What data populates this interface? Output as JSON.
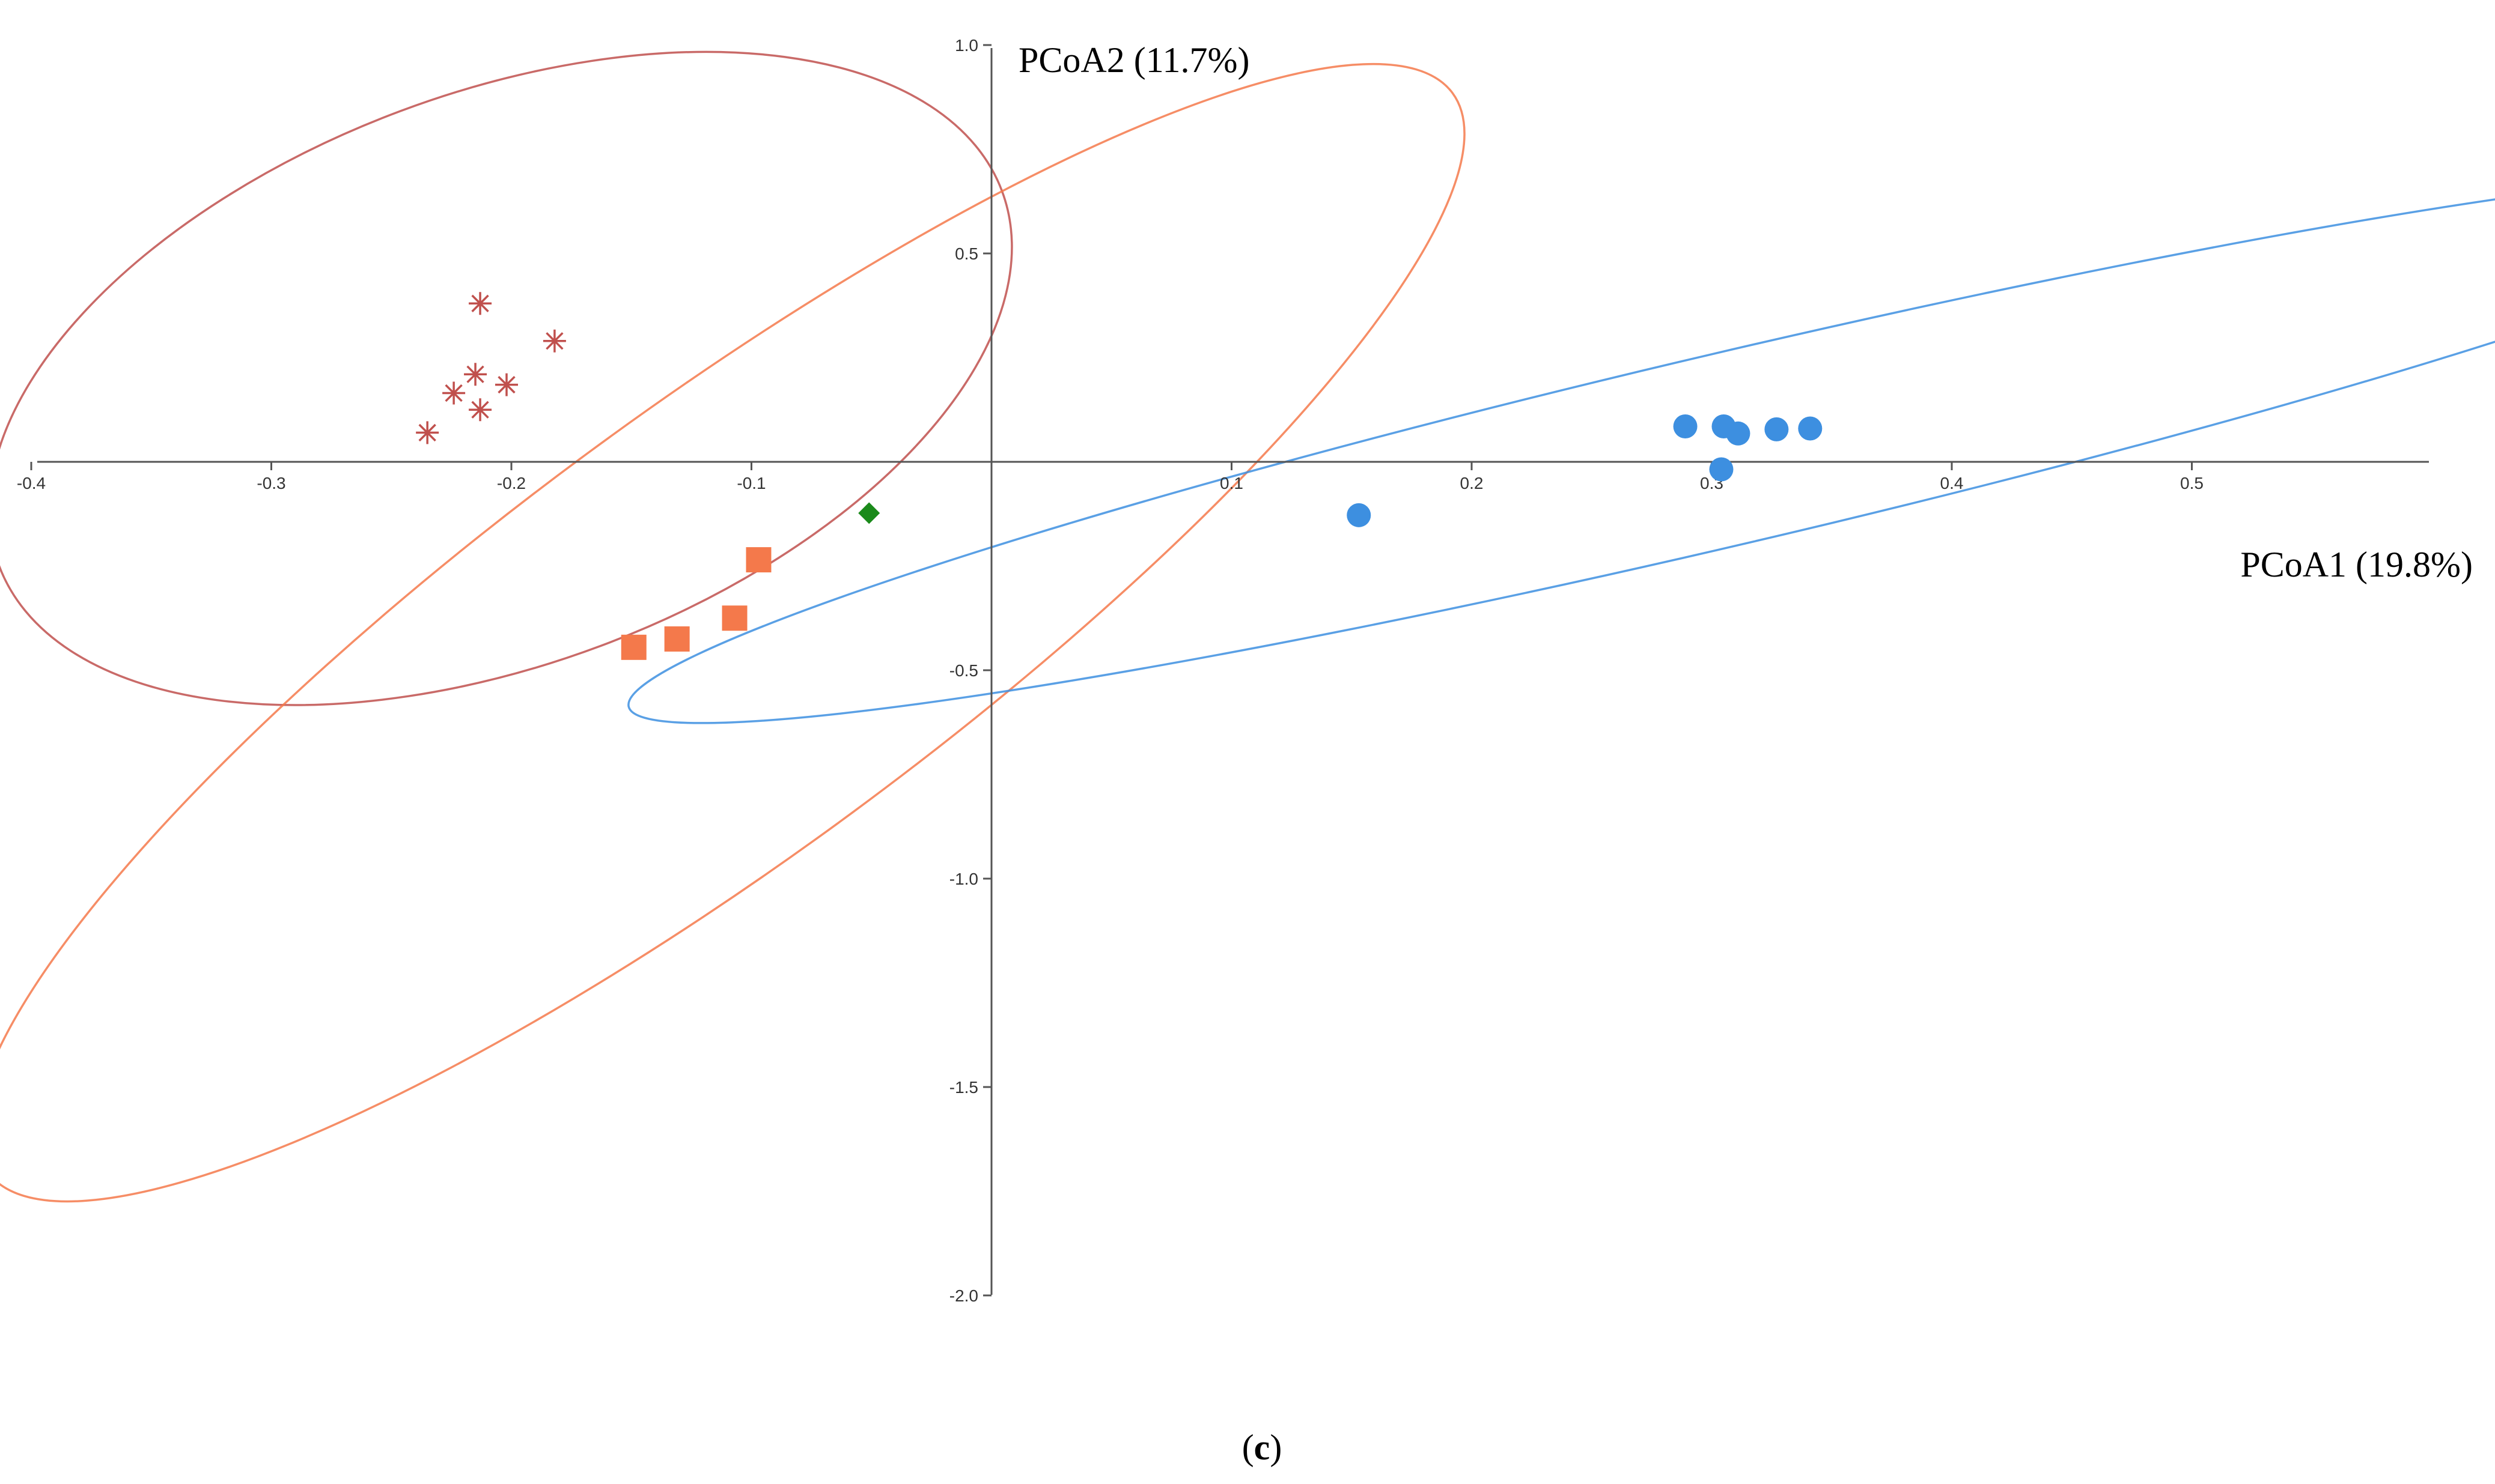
{
  "chart_data": {
    "type": "scatter",
    "title": "",
    "xlabel": "PCoA1 (19.8%)",
    "ylabel": "PCoA2 (11.7%)",
    "xlim": [
      -0.4,
      0.6
    ],
    "ylim": [
      -2.0,
      1.0
    ],
    "x_ticks": [
      {
        "value": -0.4,
        "label": "-0.4"
      },
      {
        "value": -0.3,
        "label": "-0.3"
      },
      {
        "value": -0.2,
        "label": "-0.2"
      },
      {
        "value": -0.1,
        "label": "-0.1"
      },
      {
        "value": 0.1,
        "label": "0.1"
      },
      {
        "value": 0.2,
        "label": "0.2"
      },
      {
        "value": 0.3,
        "label": "0.3"
      },
      {
        "value": 0.4,
        "label": "0.4"
      },
      {
        "value": 0.5,
        "label": "0.5"
      }
    ],
    "y_ticks": [
      {
        "value": 1.0,
        "label": "1.0"
      },
      {
        "value": 0.5,
        "label": "0.5"
      },
      {
        "value": -0.5,
        "label": "-0.5"
      },
      {
        "value": -1.0,
        "label": "-1.0"
      },
      {
        "value": -1.5,
        "label": "-1.5"
      },
      {
        "value": -2.0,
        "label": "-2.0"
      }
    ],
    "series": [
      {
        "name": "group-asterisk",
        "marker": "asterisk",
        "color": "#c0504d",
        "points": [
          {
            "x": -0.213,
            "y": 0.38
          },
          {
            "x": -0.182,
            "y": 0.29
          },
          {
            "x": -0.215,
            "y": 0.21
          },
          {
            "x": -0.202,
            "y": 0.185
          },
          {
            "x": -0.224,
            "y": 0.165
          },
          {
            "x": -0.213,
            "y": 0.125
          },
          {
            "x": -0.235,
            "y": 0.07
          }
        ],
        "ellipse": {
          "cx": -0.2045,
          "cy": 0.2,
          "rx": 0.119,
          "ry": 0.223,
          "angle_deg": 69.5
        }
      },
      {
        "name": "group-square",
        "marker": "square",
        "color": "#f4794b",
        "points": [
          {
            "x": -0.097,
            "y": -0.235
          },
          {
            "x": -0.107,
            "y": -0.375
          },
          {
            "x": -0.131,
            "y": -0.425
          },
          {
            "x": -0.149,
            "y": -0.445
          }
        ],
        "ellipse": {
          "cx": -0.113,
          "cy": -0.41,
          "rx": 0.379,
          "ry": 0.093,
          "angle_deg": -36.4
        }
      },
      {
        "name": "group-diamond",
        "marker": "diamond",
        "color": "#1a8a1a",
        "points": [
          {
            "x": -0.051,
            "y": -0.123
          }
        ]
      },
      {
        "name": "group-circle",
        "marker": "circle",
        "color": "#3d8fe0",
        "points": [
          {
            "x": 0.153,
            "y": -0.128
          },
          {
            "x": 0.289,
            "y": 0.085
          },
          {
            "x": 0.305,
            "y": 0.085
          },
          {
            "x": 0.311,
            "y": 0.068
          },
          {
            "x": 0.327,
            "y": 0.078
          },
          {
            "x": 0.341,
            "y": 0.08
          },
          {
            "x": 0.304,
            "y": -0.018
          }
        ],
        "ellipse": {
          "cx": 0.3084,
          "cy": 0.033,
          "rx": 0.472,
          "ry": 0.04,
          "angle_deg": -13.2
        }
      }
    ]
  },
  "caption": {
    "open": "(",
    "letter": "c",
    "close": ")"
  }
}
